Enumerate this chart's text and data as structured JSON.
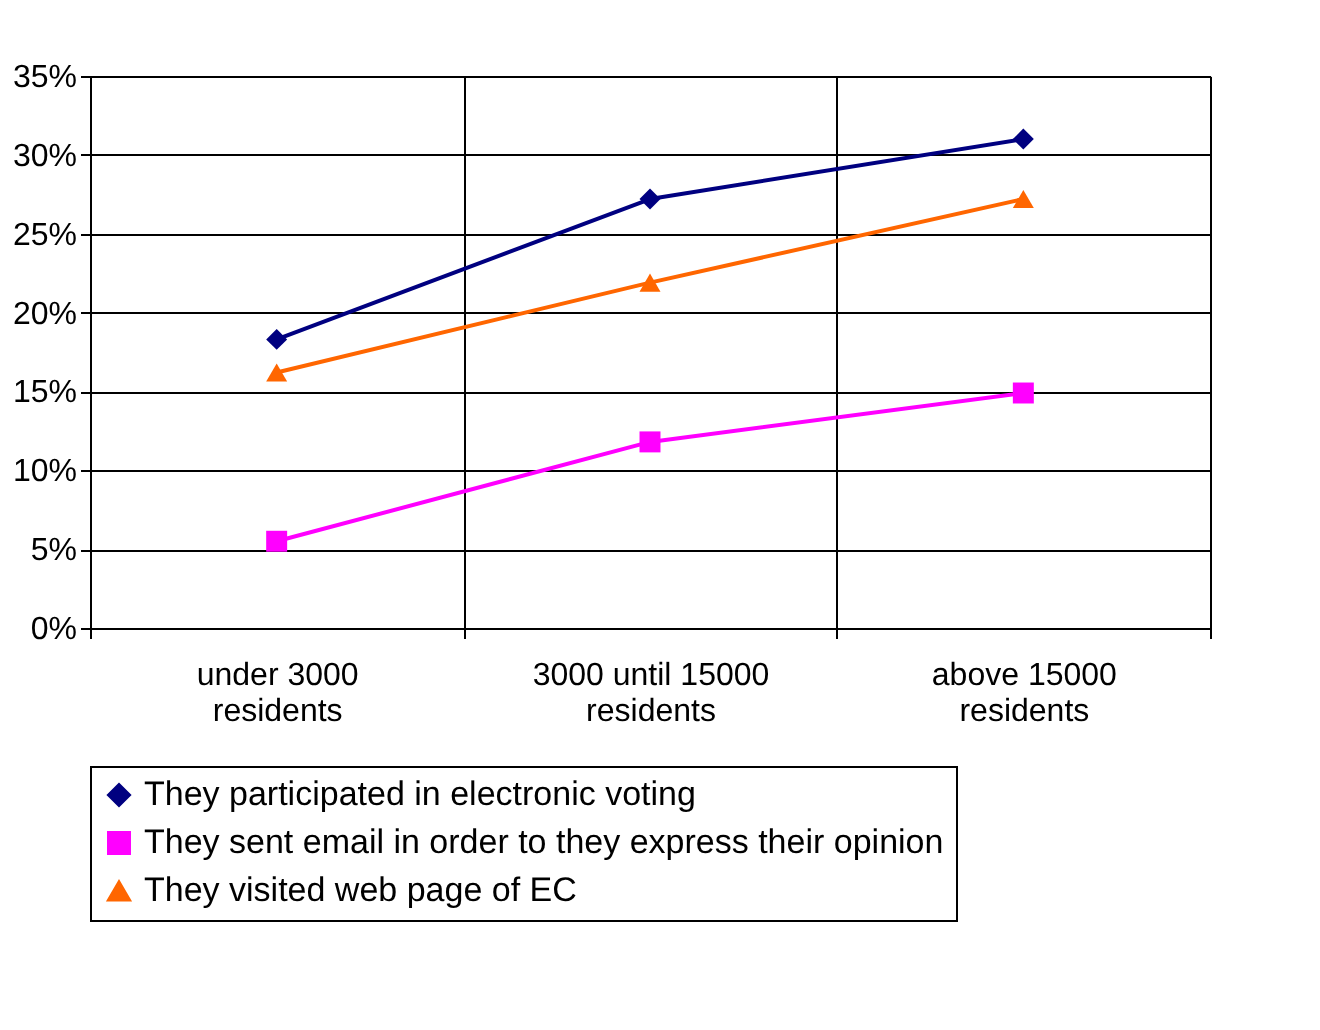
{
  "chart_data": {
    "type": "line",
    "categories": [
      "under 3000 residents",
      "3000 until 15000 residents",
      "above 15000 residents"
    ],
    "series": [
      {
        "name": "They participated in electronic voting",
        "color": "#000080",
        "marker": "diamond",
        "values": [
          18.3,
          27.2,
          31.0
        ]
      },
      {
        "name": "They sent email in order to they express their opinion",
        "color": "#ff00ff",
        "marker": "square",
        "values": [
          5.5,
          11.8,
          14.9
        ]
      },
      {
        "name": "They visited web page of EC",
        "color": "#ff6600",
        "marker": "triangle",
        "values": [
          16.2,
          21.9,
          27.2
        ]
      }
    ],
    "ylim": [
      0,
      35
    ],
    "yticks": [
      {
        "value": 0,
        "label": "0%"
      },
      {
        "value": 5,
        "label": "5%"
      },
      {
        "value": 10,
        "label": "10%"
      },
      {
        "value": 15,
        "label": "15%"
      },
      {
        "value": 20,
        "label": "20%"
      },
      {
        "value": 25,
        "label": "25%"
      },
      {
        "value": 30,
        "label": "30%"
      },
      {
        "value": 35,
        "label": "35%"
      }
    ],
    "grid": true,
    "legend": "bottom",
    "line_style": "solid"
  }
}
